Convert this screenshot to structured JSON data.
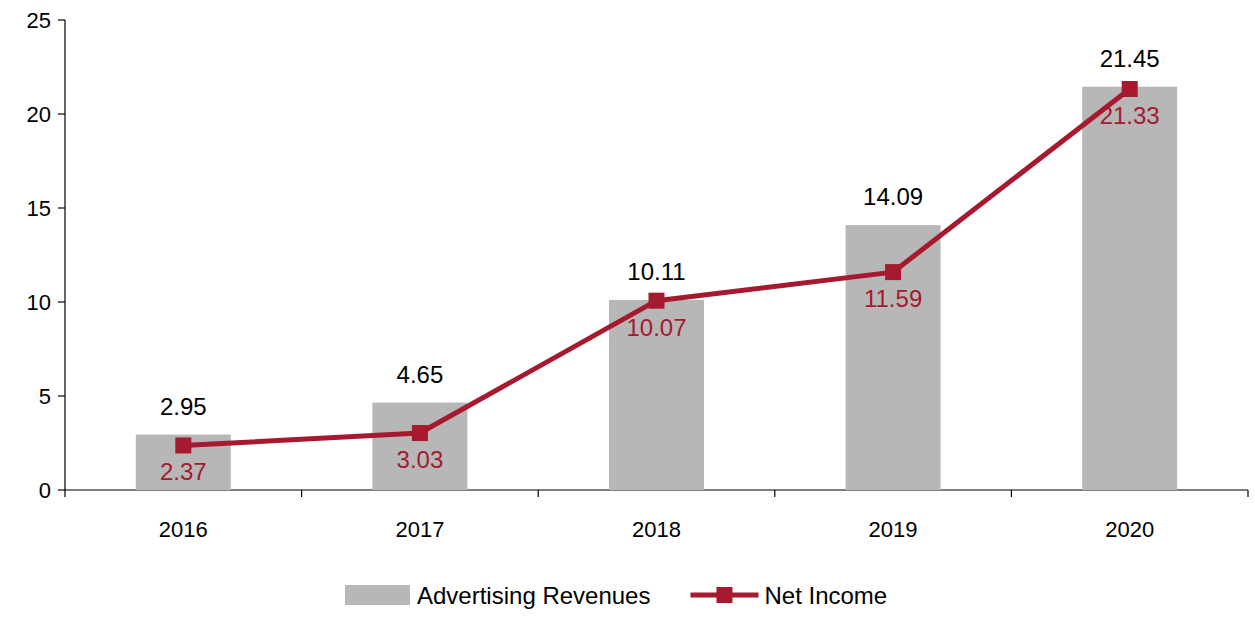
{
  "chart_data": {
    "type": "bar",
    "categories": [
      "2016",
      "2017",
      "2018",
      "2019",
      "2020"
    ],
    "series": [
      {
        "name": "Advertising Revenues",
        "type": "bar",
        "color": "#b7b7b7",
        "values": [
          2.95,
          4.65,
          10.11,
          14.09,
          21.45
        ]
      },
      {
        "name": "Net Income",
        "type": "line",
        "color": "#a6192e",
        "marker": "square",
        "values": [
          2.37,
          3.03,
          10.07,
          11.59,
          21.33
        ]
      }
    ],
    "ylim": [
      0,
      25
    ],
    "yticks": [
      0,
      5,
      10,
      15,
      20,
      25
    ],
    "grid": false,
    "legend": "bottom",
    "data_labels": true
  }
}
